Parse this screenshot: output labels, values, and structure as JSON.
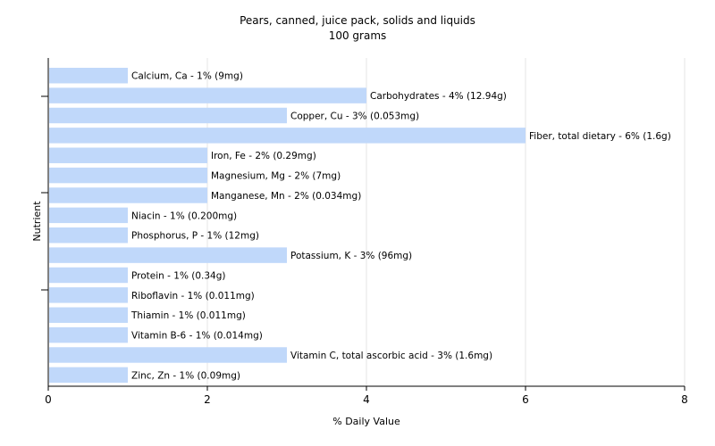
{
  "chart_data": {
    "type": "bar",
    "orientation": "horizontal",
    "title": "Pears, canned, juice pack, solids and liquids",
    "subtitle": "100 grams",
    "xlabel": "% Daily Value",
    "ylabel": "Nutrient",
    "xlim": [
      0,
      8
    ],
    "x_ticks": [
      0,
      2,
      4,
      6,
      8
    ],
    "grid": true,
    "bar_color": "#c0d8fa",
    "categories": [
      "Calcium, Ca",
      "Carbohydrates",
      "Copper, Cu",
      "Fiber, total dietary",
      "Iron, Fe",
      "Magnesium, Mg",
      "Manganese, Mn",
      "Niacin",
      "Phosphorus, P",
      "Potassium, K",
      "Protein",
      "Riboflavin",
      "Thiamin",
      "Vitamin B-6",
      "Vitamin C, total ascorbic acid",
      "Zinc, Zn"
    ],
    "values": [
      1,
      4,
      3,
      6,
      2,
      2,
      2,
      1,
      1,
      3,
      1,
      1,
      1,
      1,
      3,
      1
    ],
    "labels": [
      "Calcium, Ca - 1% (9mg)",
      "Carbohydrates - 4% (12.94g)",
      "Copper, Cu - 3% (0.053mg)",
      "Fiber, total dietary - 6% (1.6g)",
      "Iron, Fe - 2% (0.29mg)",
      "Magnesium, Mg - 2% (7mg)",
      "Manganese, Mn - 2% (0.034mg)",
      "Niacin - 1% (0.200mg)",
      "Phosphorus, P - 1% (12mg)",
      "Potassium, K - 3% (96mg)",
      "Protein - 1% (0.34g)",
      "Riboflavin - 1% (0.011mg)",
      "Thiamin - 1% (0.011mg)",
      "Vitamin B-6 - 1% (0.014mg)",
      "Vitamin C, total ascorbic acid - 3% (1.6mg)",
      "Zinc, Zn - 1% (0.09mg)"
    ]
  }
}
